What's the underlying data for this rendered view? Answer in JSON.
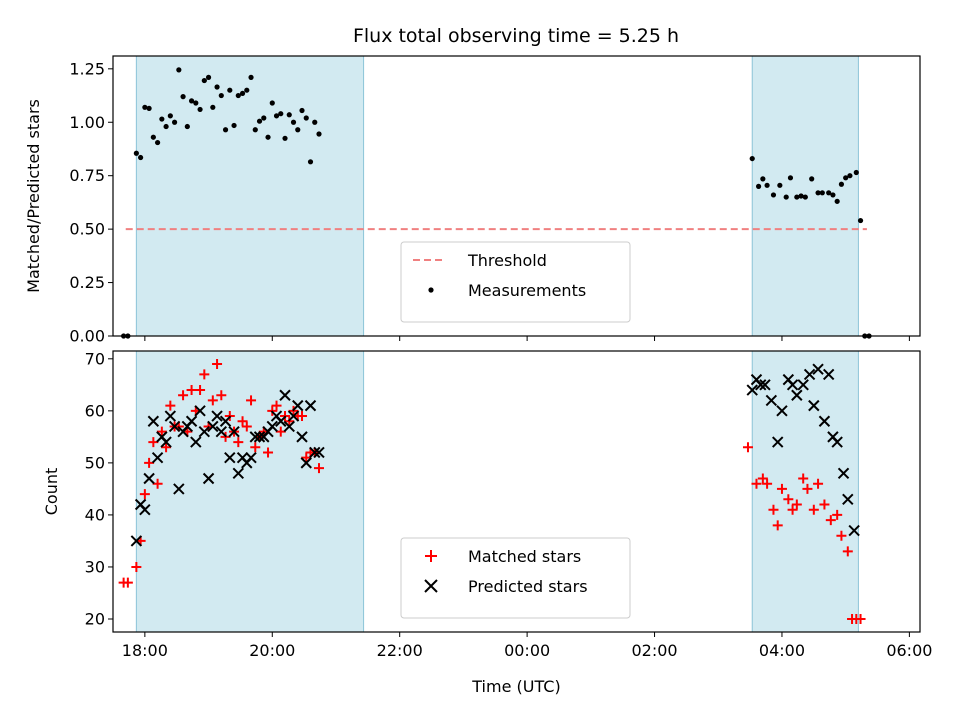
{
  "chart_data": [
    {
      "type": "scatter",
      "title": "Flux total observing time = 5.25 h",
      "xlabel": "",
      "ylabel": "Matched/Predicted stars",
      "xlim": [
        -0.75,
        18.25
      ],
      "ylim": [
        0,
        1.31
      ],
      "yticks": [
        0,
        0.25,
        0.5,
        0.75,
        1.0,
        1.25
      ],
      "ytick_labels": [
        "0.00",
        "0.25",
        "0.50",
        "0.75",
        "1.00",
        "1.25"
      ],
      "observing_windows": [
        [
          -0.2,
          5.15
        ],
        [
          14.3,
          16.8
        ]
      ],
      "threshold": {
        "value": 0.5,
        "x_range": [
          -0.45,
          17.0
        ],
        "color": "#f08080",
        "name": "Threshold"
      },
      "legend_position": "lower-center",
      "series": [
        {
          "name": "Measurements",
          "color": "#000000",
          "points": [
            [
              -0.5,
              0.0
            ],
            [
              -0.4,
              0.0
            ],
            [
              -0.2,
              0.855
            ],
            [
              -0.1,
              0.835
            ],
            [
              0.0,
              1.07
            ],
            [
              0.1,
              1.065
            ],
            [
              0.2,
              0.93
            ],
            [
              0.3,
              0.905
            ],
            [
              0.4,
              1.015
            ],
            [
              0.5,
              0.98
            ],
            [
              0.6,
              1.03
            ],
            [
              0.7,
              1.0
            ],
            [
              0.8,
              1.245
            ],
            [
              0.9,
              1.12
            ],
            [
              1.0,
              0.98
            ],
            [
              1.1,
              1.1
            ],
            [
              1.2,
              1.09
            ],
            [
              1.3,
              1.06
            ],
            [
              1.4,
              1.195
            ],
            [
              1.5,
              1.21
            ],
            [
              1.6,
              1.07
            ],
            [
              1.7,
              1.165
            ],
            [
              1.8,
              1.125
            ],
            [
              1.9,
              0.965
            ],
            [
              2.0,
              1.15
            ],
            [
              2.1,
              0.985
            ],
            [
              2.2,
              1.125
            ],
            [
              2.3,
              1.135
            ],
            [
              2.4,
              1.15
            ],
            [
              2.5,
              1.21
            ],
            [
              2.6,
              0.965
            ],
            [
              2.7,
              1.005
            ],
            [
              2.8,
              1.02
            ],
            [
              2.9,
              0.93
            ],
            [
              3.0,
              1.09
            ],
            [
              3.1,
              1.03
            ],
            [
              3.2,
              1.04
            ],
            [
              3.3,
              0.925
            ],
            [
              3.4,
              1.035
            ],
            [
              3.5,
              1.0
            ],
            [
              3.6,
              0.965
            ],
            [
              3.7,
              1.055
            ],
            [
              3.8,
              1.02
            ],
            [
              3.9,
              0.815
            ],
            [
              4.0,
              1.0
            ],
            [
              4.1,
              0.945
            ],
            [
              14.3,
              0.83
            ],
            [
              14.45,
              0.7
            ],
            [
              14.55,
              0.735
            ],
            [
              14.65,
              0.705
            ],
            [
              14.8,
              0.66
            ],
            [
              14.95,
              0.705
            ],
            [
              15.1,
              0.65
            ],
            [
              15.2,
              0.74
            ],
            [
              15.35,
              0.65
            ],
            [
              15.45,
              0.655
            ],
            [
              15.55,
              0.65
            ],
            [
              15.7,
              0.735
            ],
            [
              15.85,
              0.67
            ],
            [
              15.95,
              0.67
            ],
            [
              16.1,
              0.67
            ],
            [
              16.2,
              0.66
            ],
            [
              16.3,
              0.63
            ],
            [
              16.4,
              0.71
            ],
            [
              16.5,
              0.74
            ],
            [
              16.6,
              0.75
            ],
            [
              16.75,
              0.765
            ],
            [
              16.85,
              0.54
            ],
            [
              16.95,
              0.0
            ],
            [
              17.05,
              0.0
            ]
          ]
        }
      ]
    },
    {
      "type": "scatter",
      "title": "",
      "xlabel": "Time (UTC)",
      "ylabel": "Count",
      "xlim": [
        -0.75,
        18.25
      ],
      "ylim": [
        17.5,
        71.5
      ],
      "yticks": [
        20,
        30,
        40,
        50,
        60,
        70
      ],
      "ytick_labels": [
        "20",
        "30",
        "40",
        "50",
        "60",
        "70"
      ],
      "xticks": [
        0,
        3,
        6,
        9,
        12,
        15,
        18
      ],
      "xtick_labels": [
        "18:00",
        "20:00",
        "22:00",
        "00:00",
        "02:00",
        "04:00",
        "06:00"
      ],
      "observing_windows": [
        [
          -0.2,
          5.15
        ],
        [
          14.3,
          16.8
        ]
      ],
      "legend_position": "lower-center",
      "series": [
        {
          "name": "Matched stars",
          "color": "#ff0000",
          "marker": "plus",
          "points": [
            [
              -0.5,
              27
            ],
            [
              -0.4,
              27
            ],
            [
              -0.2,
              30
            ],
            [
              -0.1,
              35
            ],
            [
              0.0,
              44
            ],
            [
              0.1,
              50
            ],
            [
              0.2,
              54
            ],
            [
              0.3,
              46
            ],
            [
              0.4,
              56
            ],
            [
              0.5,
              53
            ],
            [
              0.6,
              61
            ],
            [
              0.7,
              57
            ],
            [
              0.8,
              57
            ],
            [
              0.9,
              63
            ],
            [
              1.0,
              56
            ],
            [
              1.1,
              64
            ],
            [
              1.2,
              60
            ],
            [
              1.3,
              64
            ],
            [
              1.4,
              67
            ],
            [
              1.5,
              57
            ],
            [
              1.6,
              62
            ],
            [
              1.7,
              69
            ],
            [
              1.8,
              63
            ],
            [
              1.9,
              55
            ],
            [
              2.0,
              59
            ],
            [
              2.1,
              56
            ],
            [
              2.2,
              54
            ],
            [
              2.3,
              58
            ],
            [
              2.4,
              57
            ],
            [
              2.5,
              62
            ],
            [
              2.6,
              53
            ],
            [
              2.7,
              55
            ],
            [
              2.8,
              56
            ],
            [
              2.9,
              52
            ],
            [
              3.0,
              60
            ],
            [
              3.1,
              61
            ],
            [
              3.2,
              56
            ],
            [
              3.3,
              59
            ],
            [
              3.4,
              58
            ],
            [
              3.5,
              60
            ],
            [
              3.6,
              59
            ],
            [
              3.7,
              59
            ],
            [
              3.8,
              51
            ],
            [
              3.9,
              52
            ],
            [
              4.0,
              52
            ],
            [
              4.1,
              49
            ],
            [
              14.2,
              53
            ],
            [
              14.4,
              46
            ],
            [
              14.55,
              47
            ],
            [
              14.65,
              46
            ],
            [
              14.8,
              41
            ],
            [
              14.9,
              38
            ],
            [
              15.0,
              45
            ],
            [
              15.15,
              43
            ],
            [
              15.25,
              41
            ],
            [
              15.35,
              42
            ],
            [
              15.5,
              47
            ],
            [
              15.6,
              45
            ],
            [
              15.75,
              41
            ],
            [
              15.85,
              46
            ],
            [
              16.0,
              42
            ],
            [
              16.15,
              39
            ],
            [
              16.3,
              40
            ],
            [
              16.4,
              36
            ],
            [
              16.55,
              33
            ],
            [
              16.65,
              20
            ],
            [
              16.75,
              20
            ],
            [
              16.85,
              20
            ]
          ]
        },
        {
          "name": "Predicted stars",
          "color": "#000000",
          "marker": "x",
          "points": [
            [
              -0.2,
              35
            ],
            [
              -0.1,
              42
            ],
            [
              0.0,
              41
            ],
            [
              0.1,
              47
            ],
            [
              0.2,
              58
            ],
            [
              0.3,
              51
            ],
            [
              0.4,
              55
            ],
            [
              0.5,
              54
            ],
            [
              0.6,
              59
            ],
            [
              0.7,
              57
            ],
            [
              0.8,
              45
            ],
            [
              0.9,
              56
            ],
            [
              1.0,
              57
            ],
            [
              1.1,
              58
            ],
            [
              1.2,
              54
            ],
            [
              1.3,
              60
            ],
            [
              1.4,
              56
            ],
            [
              1.5,
              47
            ],
            [
              1.6,
              57
            ],
            [
              1.7,
              59
            ],
            [
              1.8,
              56
            ],
            [
              1.9,
              58
            ],
            [
              2.0,
              51
            ],
            [
              2.1,
              56
            ],
            [
              2.2,
              48
            ],
            [
              2.3,
              51
            ],
            [
              2.4,
              50
            ],
            [
              2.5,
              51
            ],
            [
              2.6,
              55
            ],
            [
              2.7,
              55
            ],
            [
              2.8,
              55
            ],
            [
              2.9,
              56
            ],
            [
              3.0,
              57
            ],
            [
              3.1,
              59
            ],
            [
              3.2,
              58
            ],
            [
              3.3,
              63
            ],
            [
              3.4,
              57
            ],
            [
              3.5,
              59
            ],
            [
              3.6,
              61
            ],
            [
              3.7,
              55
            ],
            [
              3.8,
              50
            ],
            [
              3.9,
              61
            ],
            [
              4.0,
              52
            ],
            [
              4.1,
              52
            ],
            [
              14.3,
              64
            ],
            [
              14.4,
              66
            ],
            [
              14.5,
              65
            ],
            [
              14.6,
              65
            ],
            [
              14.75,
              62
            ],
            [
              14.9,
              54
            ],
            [
              15.0,
              60
            ],
            [
              15.15,
              66
            ],
            [
              15.25,
              65
            ],
            [
              15.35,
              63
            ],
            [
              15.5,
              65
            ],
            [
              15.65,
              67
            ],
            [
              15.75,
              61
            ],
            [
              15.85,
              68
            ],
            [
              16.0,
              58
            ],
            [
              16.1,
              67
            ],
            [
              16.2,
              55
            ],
            [
              16.3,
              54
            ],
            [
              16.45,
              48
            ],
            [
              16.55,
              43
            ],
            [
              16.7,
              37
            ]
          ]
        }
      ]
    }
  ]
}
